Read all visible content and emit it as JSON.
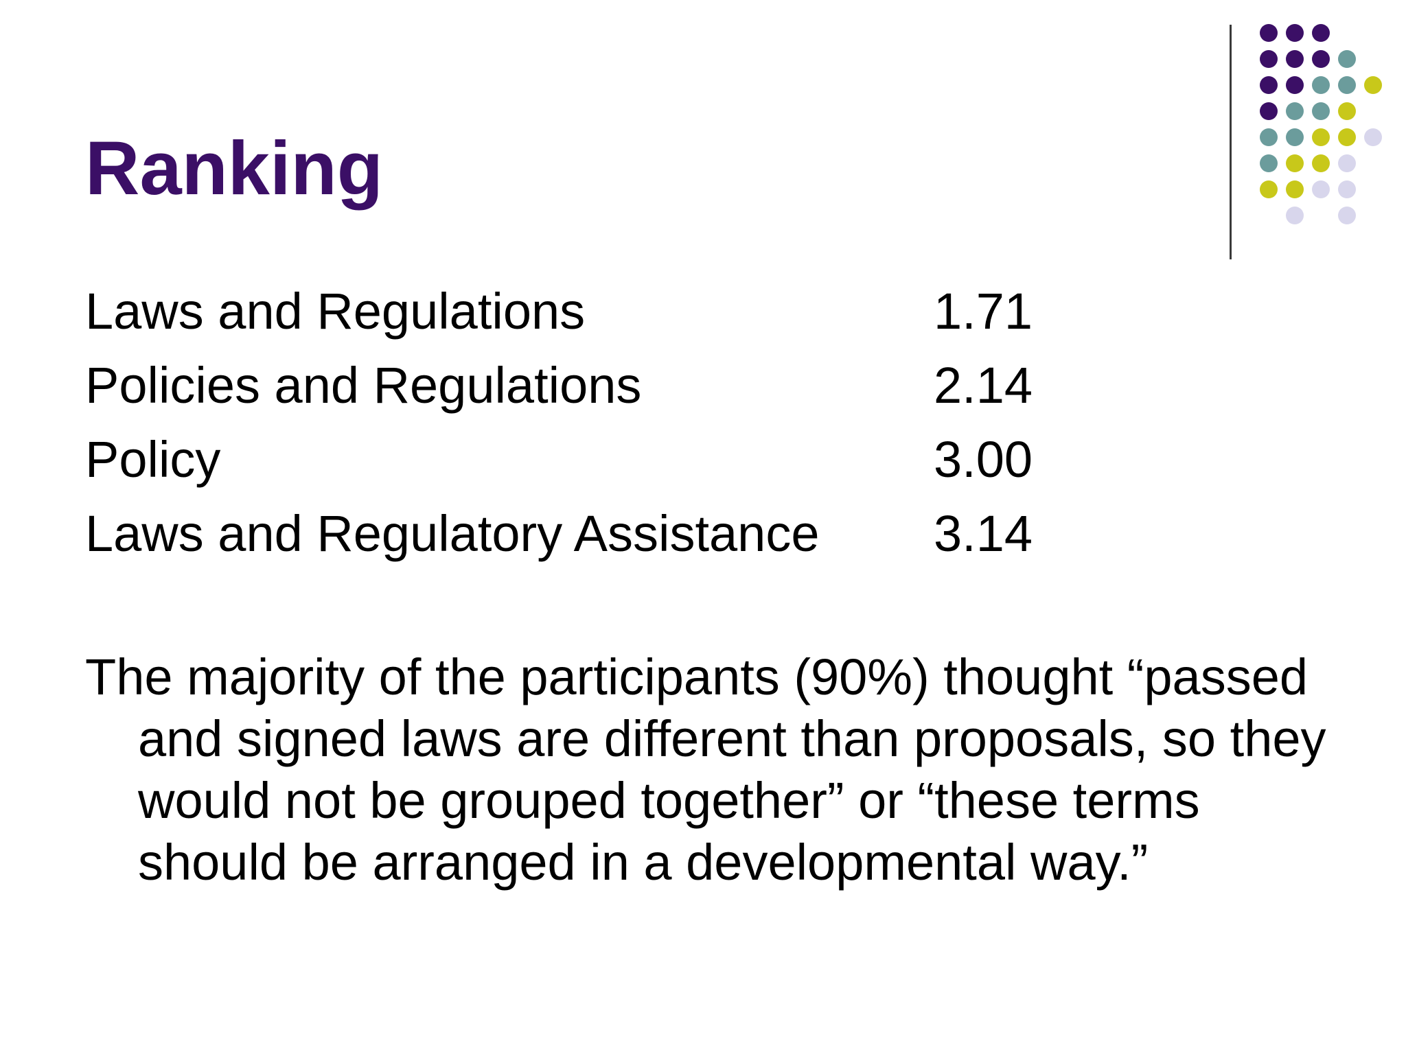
{
  "slide": {
    "title": "Ranking",
    "rankings": [
      {
        "label": "Laws and Regulations",
        "value": "1.71"
      },
      {
        "label": "Policies and Regulations",
        "value": "2.14"
      },
      {
        "label": "Policy",
        "value": "3.00"
      },
      {
        "label": "Laws and Regulatory Assistance",
        "value": "3.14"
      }
    ],
    "note": "The majority of the participants (90%) thought “passed and signed laws are different than proposals, so they would not be grouped together” or “these terms should be arranged in a developmental way.”"
  },
  "decoration": {
    "colors": {
      "purple": "#3b0f66",
      "teal": "#6b9c9c",
      "yellow": "#c8c81a",
      "lavender": "#d8d6ec"
    }
  }
}
